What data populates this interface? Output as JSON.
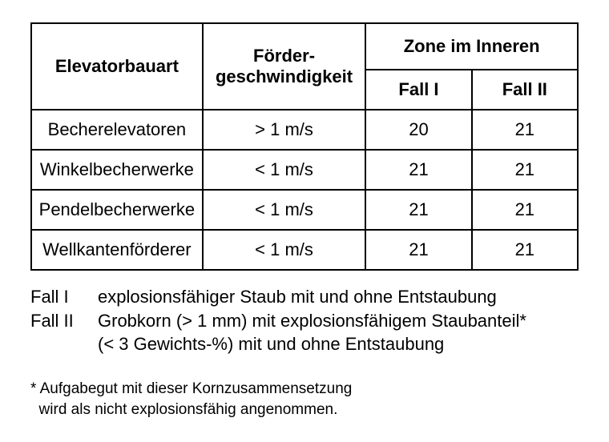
{
  "table": {
    "head": {
      "col1": "Elevatorbauart",
      "col2_line1": "Förder-",
      "col2_line2": "geschwindigkeit",
      "col34_group": "Zone im Inneren",
      "col3": "Fall I",
      "col4": "Fall II"
    },
    "rows": [
      {
        "name": "Becherelevatoren",
        "speed": "> 1 m/s",
        "fall1": "20",
        "fall2": "21"
      },
      {
        "name": "Winkelbecherwerke",
        "speed": "< 1 m/s",
        "fall1": "21",
        "fall2": "21"
      },
      {
        "name": "Pendelbecherwerke",
        "speed": "< 1 m/s",
        "fall1": "21",
        "fall2": "21"
      },
      {
        "name": "Wellkantenförderer",
        "speed": "< 1 m/s",
        "fall1": "21",
        "fall2": "21"
      }
    ]
  },
  "legend": {
    "fall1_label": "Fall I",
    "fall1_text": "explosionsfähiger Staub mit und ohne Entstaubung",
    "fall2_label": "Fall II",
    "fall2_text_line1": "Grobkorn (> 1 mm) mit explosionsfähigem Staubanteil*",
    "fall2_text_line2": "(< 3 Gewichts-%) mit und ohne Entstaubung"
  },
  "footnote": {
    "line1": "* Aufgabegut mit dieser Kornzusammensetzung",
    "line2": "  wird als nicht explosionsfähig angenommen."
  }
}
